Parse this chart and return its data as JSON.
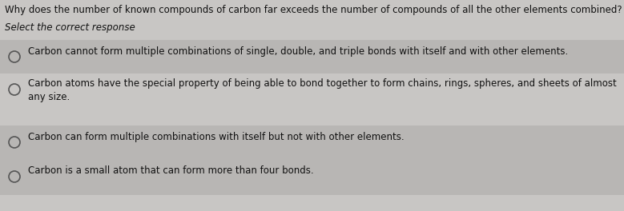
{
  "title": "Why does the number of known compounds of carbon far exceeds the number of compounds of all the other elements combined?",
  "subtitle": "Select the correct response",
  "bg_color": "#c8c6c4",
  "option_bg_dark": "#b8b6b4",
  "option_bg_light": "#c8c6c4",
  "options": [
    "Carbon cannot form multiple combinations of single, double, and triple bonds with itself and with other elements.",
    "Carbon atoms have the special property of being able to bond together to form chains, rings, spheres, and sheets of almost\nany size.",
    "Carbon can form multiple combinations with itself but not with other elements.",
    "Carbon is a small atom that can form more than four bonds."
  ],
  "title_fontsize": 8.5,
  "subtitle_fontsize": 8.5,
  "option_fontsize": 8.5,
  "text_color": "#111111",
  "figsize": [
    7.79,
    2.64
  ],
  "dpi": 100
}
